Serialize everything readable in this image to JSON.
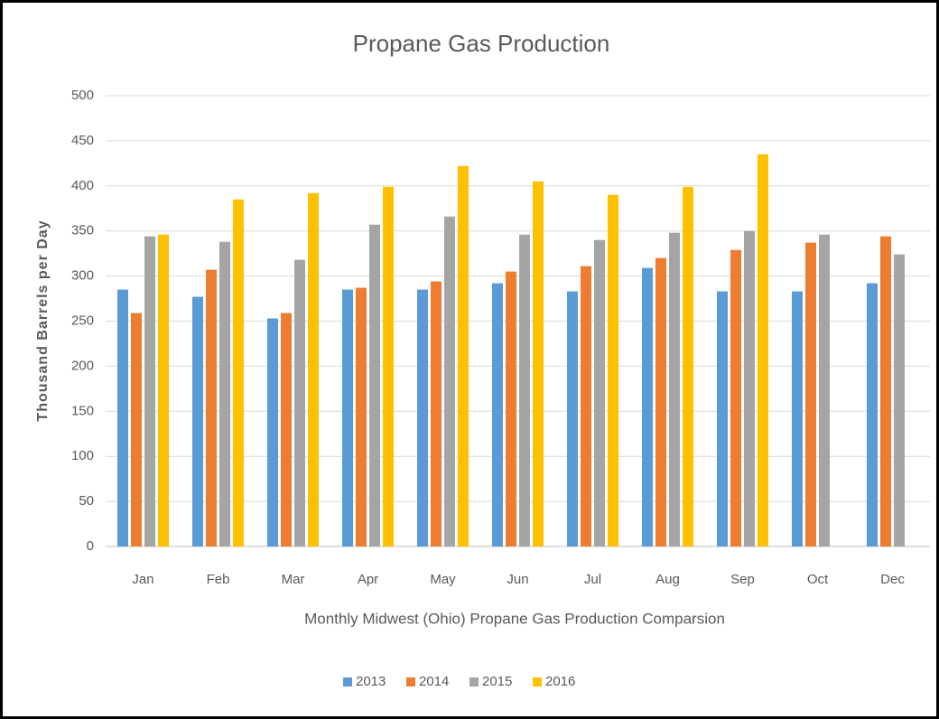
{
  "chart_data": {
    "type": "bar",
    "title": "Propane Gas Production",
    "x_label": "Monthly Midwest (Ohio)  Propane Gas Production Comparsion",
    "y_label": "Thousand Barrels per Day",
    "categories": [
      "Jan",
      "Feb",
      "Mar",
      "Apr",
      "May",
      "Jun",
      "Jul",
      "Aug",
      "Sep",
      "Oct",
      "Dec"
    ],
    "series": [
      {
        "name": "2013",
        "color": "#5b9bd5",
        "values": [
          285,
          277,
          253,
          285,
          285,
          292,
          283,
          309,
          283,
          283,
          292
        ]
      },
      {
        "name": "2014",
        "color": "#ed7d31",
        "values": [
          259,
          307,
          259,
          287,
          294,
          305,
          311,
          320,
          329,
          337,
          344
        ]
      },
      {
        "name": "2015",
        "color": "#a5a5a5",
        "values": [
          344,
          338,
          318,
          357,
          366,
          346,
          340,
          348,
          350,
          346,
          324
        ]
      },
      {
        "name": "2016",
        "color": "#ffc000",
        "values": [
          346,
          385,
          392,
          399,
          422,
          405,
          390,
          399,
          435,
          null,
          null
        ]
      }
    ],
    "ylim": [
      0,
      500
    ],
    "yticks": [
      0,
      50,
      100,
      150,
      200,
      250,
      300,
      350,
      400,
      450,
      500
    ],
    "grid": true,
    "legend": "bottom"
  }
}
